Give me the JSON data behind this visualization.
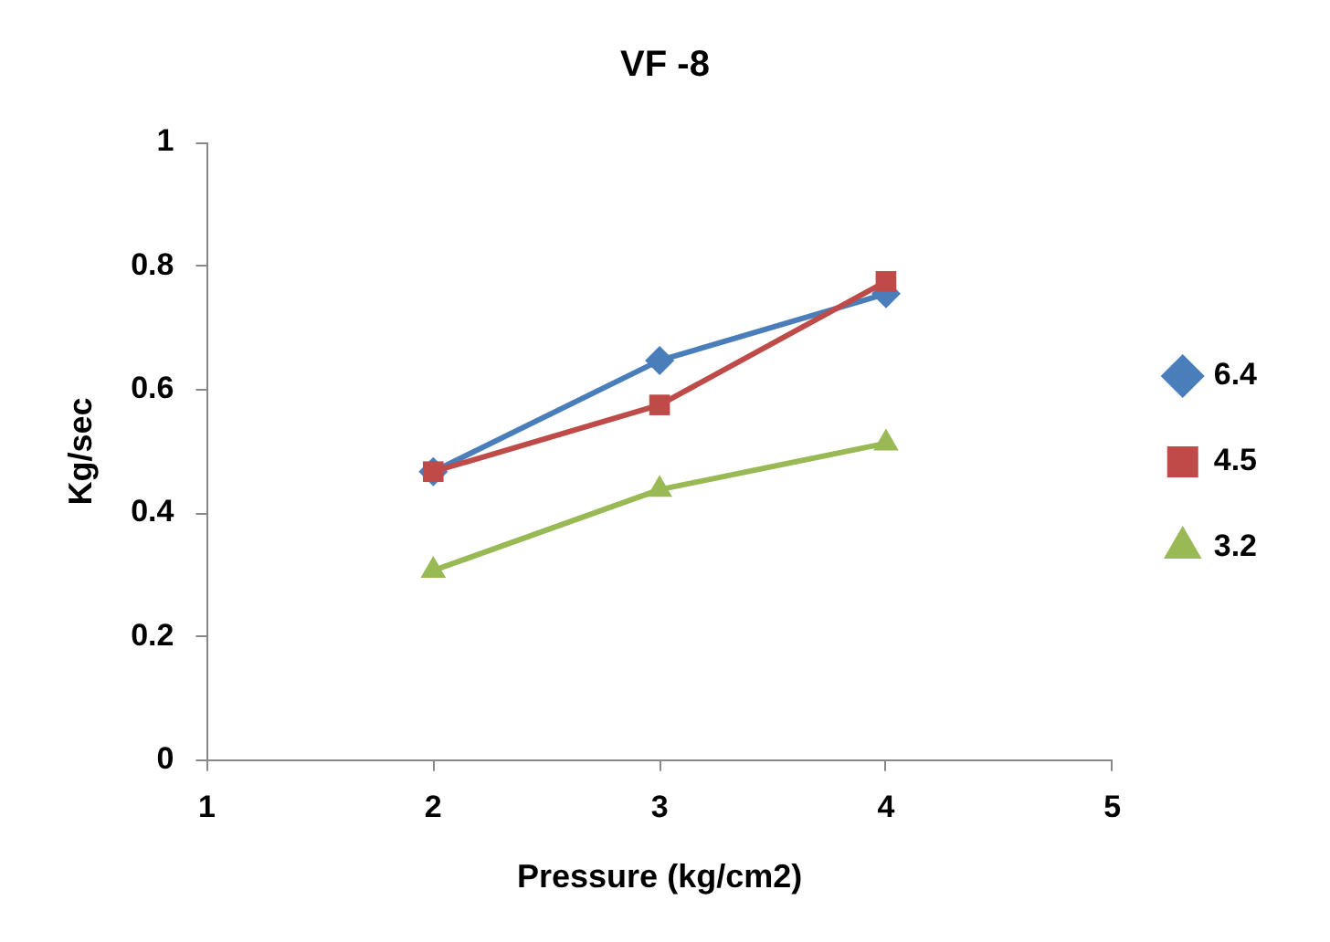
{
  "chart_data": {
    "type": "line",
    "title": "VF -8",
    "xlabel": "Pressure (kg/cm2)",
    "ylabel": "Kg/sec",
    "x": [
      2,
      3,
      4
    ],
    "series": [
      {
        "name": "6.4",
        "color": "#4a7ebb",
        "values": [
          0.467,
          0.647,
          0.755
        ],
        "marker": "diamond"
      },
      {
        "name": "4.5",
        "color": "#be4b48",
        "values": [
          0.467,
          0.575,
          0.775
        ],
        "marker": "square"
      },
      {
        "name": "3.2",
        "color": "#98b954",
        "values": [
          0.307,
          0.438,
          0.513
        ],
        "marker": "triangle"
      }
    ],
    "xlim": [
      1,
      5
    ],
    "xticks": [
      1,
      2,
      3,
      4,
      5
    ],
    "ylim": [
      0,
      1
    ],
    "yticks": [
      0,
      0.2,
      0.4,
      0.6,
      0.8,
      1
    ],
    "grid": false,
    "legend": "right",
    "line_style": "solid"
  }
}
